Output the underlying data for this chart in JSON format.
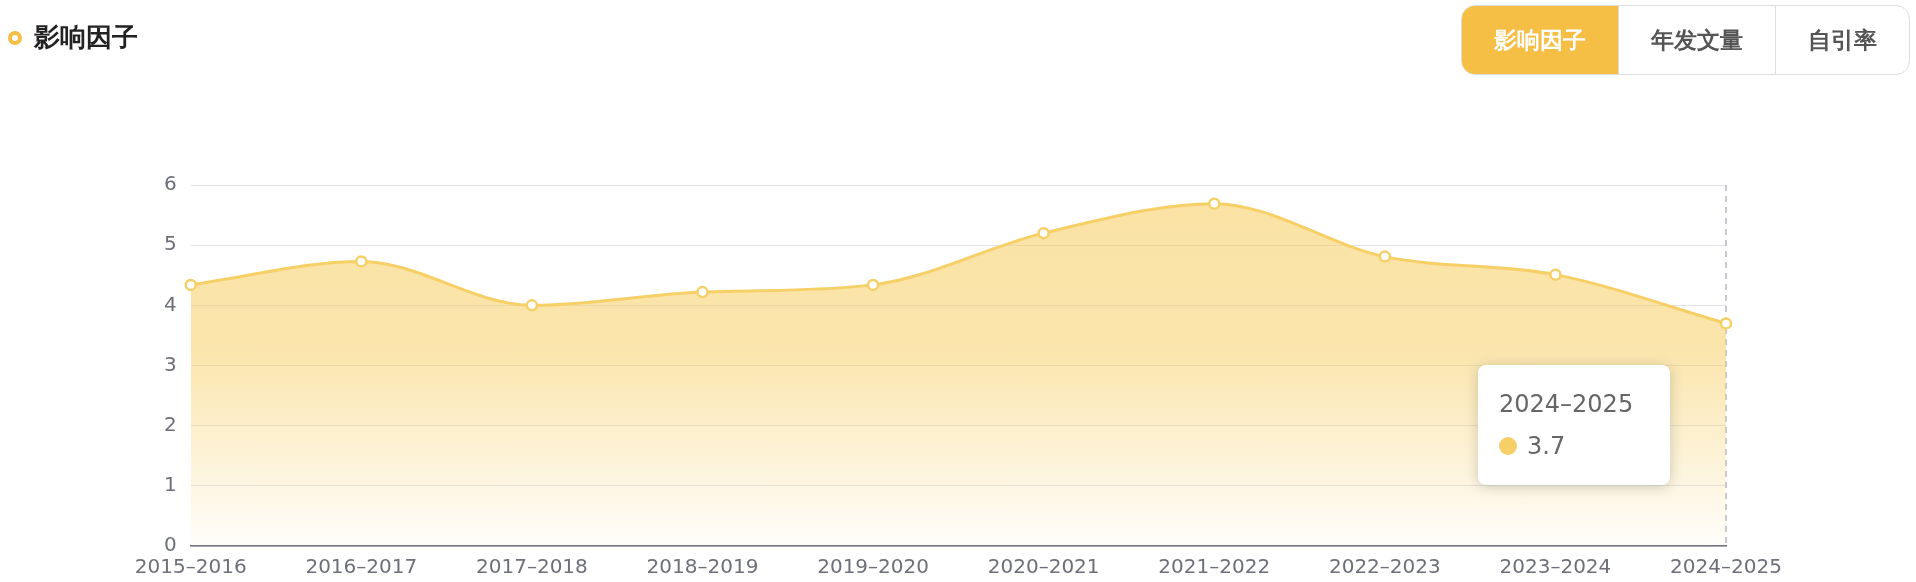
{
  "chart_data": {
    "type": "area",
    "title": "影响因子",
    "categories": [
      "2015–2016",
      "2016–2017",
      "2017–2018",
      "2018–2019",
      "2019–2020",
      "2020–2021",
      "2021–2022",
      "2022–2023",
      "2023–2024",
      "2024–2025"
    ],
    "series": [
      {
        "color": "#f6cf66",
        "values": [
          4.34,
          4.73,
          4.0,
          4.22,
          4.34,
          5.2,
          5.69,
          4.81,
          4.51,
          3.7
        ]
      }
    ],
    "ylim": [
      0,
      6
    ],
    "yticks": [
      0,
      1,
      2,
      3,
      4,
      5,
      6
    ],
    "grid": "y",
    "legend": false,
    "marker": "circle",
    "line_style": "solid",
    "ref_lines": [
      {
        "axis": "x",
        "value": "2024–2025",
        "color": "#b4b8c2",
        "line_style": "dashed"
      }
    ],
    "annotations": [
      "3.7",
      "年发文量",
      "自引率"
    ]
  }
}
